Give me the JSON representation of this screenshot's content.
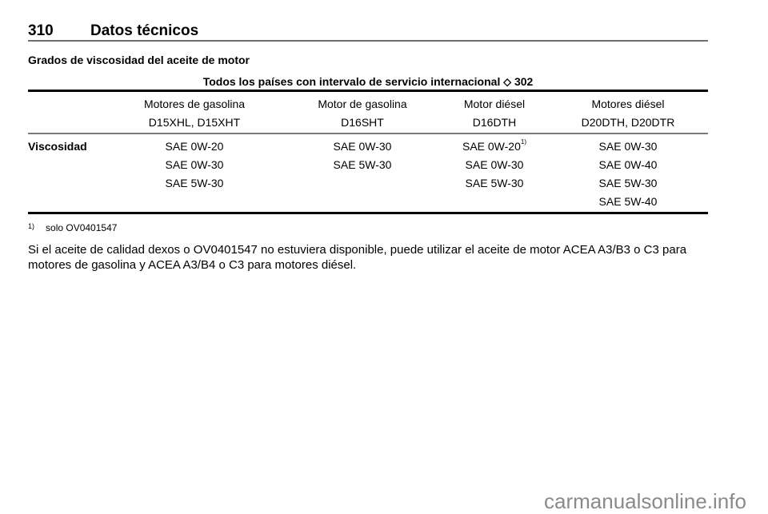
{
  "header": {
    "page_number": "310",
    "title": "Datos técnicos"
  },
  "section": {
    "heading": "Grados de viscosidad del aceite de motor"
  },
  "table": {
    "caption": "Todos los países con intervalo de servicio internacional",
    "caption_ref_icon": "arrow-reference-icon",
    "caption_ref_page": "302",
    "columns": [
      {
        "type": "Motores de gasolina",
        "engines": "D15XHL, D15XHT"
      },
      {
        "type": "Motor de gasolina",
        "engines": "D16SHT"
      },
      {
        "type": "Motor diésel",
        "engines": "D16DTH"
      },
      {
        "type": "Motores diésel",
        "engines": "D20DTH, D20DTR"
      }
    ],
    "row_label": "Viscosidad",
    "values": [
      [
        "SAE 0W-20",
        "SAE 0W-30",
        "SAE 5W-30"
      ],
      [
        "SAE 0W-30",
        "SAE 5W-30"
      ],
      [
        "SAE 0W-20",
        "SAE 0W-30",
        "SAE 5W-30"
      ],
      [
        "SAE 0W-30",
        "SAE 0W-40",
        "SAE 5W-30",
        "SAE 5W-40"
      ]
    ],
    "footnote_marker": "1)"
  },
  "footnote": {
    "marker": "1)",
    "text": "solo OV0401547"
  },
  "paragraph": "Si el aceite de calidad dexos o OV0401547 no estuviera disponible, puede utilizar el aceite de motor ACEA A3/B3 o C3 para motores de gasolina y ACEA A3/B4 o C3 para motores diésel.",
  "watermark": "carmanualsonline.info"
}
